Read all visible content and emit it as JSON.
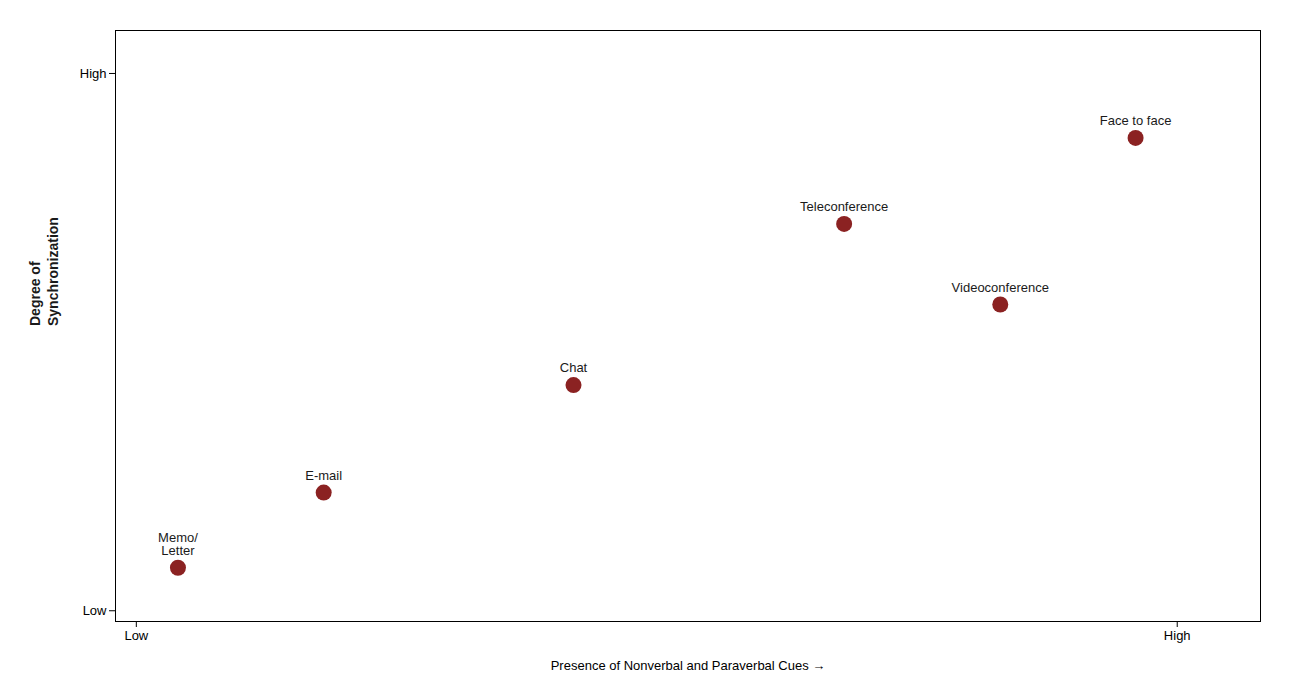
{
  "chart_data": {
    "type": "scatter",
    "xlabel": "Presence of Nonverbal and Paraverbal Cues",
    "ylabel": "Degree of\nSynchronization",
    "labels": [
      "Memo/\nLetter",
      "E-mail",
      "Chat",
      "Teleconference",
      "Videoconference",
      "Face to face"
    ],
    "x": [
      0.04,
      0.18,
      0.42,
      0.68,
      0.83,
      0.96
    ],
    "y": [
      0.08,
      0.22,
      0.42,
      0.72,
      0.57,
      0.88
    ],
    "color": "#8B2222",
    "xlim": [
      -0.02,
      1.08
    ],
    "ylim": [
      -0.02,
      1.08
    ],
    "xticks": [
      {
        "value": 0.0,
        "label": "Low"
      },
      {
        "value": 1.0,
        "label": "High"
      }
    ],
    "yticks": [
      {
        "value": 0.0,
        "label": "Low"
      },
      {
        "value": 1.0,
        "label": "High"
      }
    ],
    "grid": false
  }
}
